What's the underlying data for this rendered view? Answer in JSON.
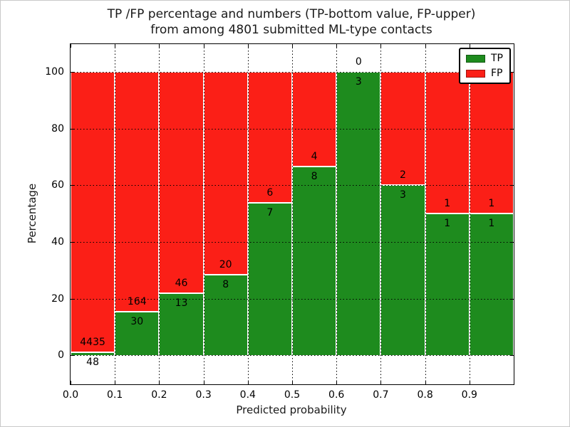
{
  "figure": {
    "background": "#ffffff",
    "frame_color": "#000000"
  },
  "chart_data": {
    "type": "bar",
    "stacked": true,
    "title_line1": "TP /FP percentage and numbers (TP-bottom value, FP-upper)",
    "title_line2": "from among 4801 submitted ML-type contacts",
    "xlabel": "Predicted probability",
    "ylabel": "Percentage",
    "xlim": [
      0.0,
      1.0
    ],
    "ylim": [
      -10.2,
      109.8
    ],
    "bin_width": 0.1,
    "xtick_values": [
      0.0,
      0.1,
      0.2,
      0.3,
      0.4,
      0.5,
      0.6,
      0.7,
      0.8,
      0.9
    ],
    "xtick_labels": [
      "0.0",
      "0.1",
      "0.2",
      "0.3",
      "0.4",
      "0.5",
      "0.6",
      "0.7",
      "0.8",
      "0.9"
    ],
    "ytick_values": [
      0,
      20,
      40,
      60,
      80,
      100
    ],
    "ytick_labels": [
      "0",
      "20",
      "40",
      "60",
      "80",
      "100"
    ],
    "grid": {
      "style": "dotted",
      "color": "#000000",
      "on": true
    },
    "annotation_rule": "FP count above TP/FP boundary, TP count below boundary",
    "bins": [
      {
        "range": "0.0-0.1",
        "tp": 48,
        "fp": 4435
      },
      {
        "range": "0.1-0.2",
        "tp": 30,
        "fp": 164
      },
      {
        "range": "0.2-0.3",
        "tp": 13,
        "fp": 46
      },
      {
        "range": "0.3-0.4",
        "tp": 8,
        "fp": 20
      },
      {
        "range": "0.4-0.5",
        "tp": 7,
        "fp": 6
      },
      {
        "range": "0.5-0.6",
        "tp": 8,
        "fp": 4
      },
      {
        "range": "0.6-0.7",
        "tp": 3,
        "fp": 0
      },
      {
        "range": "0.7-0.8",
        "tp": 3,
        "fp": 2
      },
      {
        "range": "0.8-0.9",
        "tp": 1,
        "fp": 1
      },
      {
        "range": "0.9-1.0",
        "tp": 1,
        "fp": 1
      }
    ],
    "legend": {
      "position": "upper-right",
      "entries": [
        {
          "label": "TP",
          "color": "#1e8b1e"
        },
        {
          "label": "FP",
          "color": "#fb1f17"
        }
      ]
    }
  }
}
